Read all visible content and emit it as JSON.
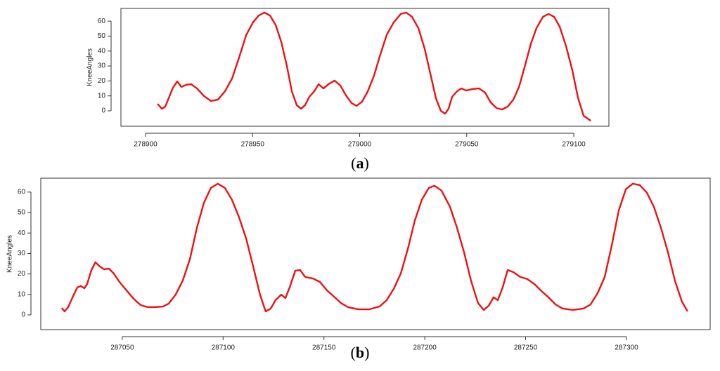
{
  "chart_data": [
    {
      "type": "line",
      "caption": "a",
      "ylabel": "KneeAngles",
      "color": "#ee1111",
      "xlim": [
        278888.5,
        279116.4
      ],
      "xticks": [
        278900,
        278950,
        279000,
        279050,
        279100
      ],
      "ylim": [
        -10.3,
        68.5
      ],
      "yticks": [
        0,
        10,
        20,
        30,
        40,
        50,
        60
      ],
      "x": [
        278905.6,
        278907.6,
        278909.2,
        278910.8,
        278912.8,
        278914.8,
        278916.7,
        278919,
        278921.3,
        278924,
        278927.3,
        278930.5,
        278933.8,
        278937.1,
        278940.4,
        278943.7,
        278947,
        278950.2,
        278952.9,
        278955.5,
        278958.1,
        278960.8,
        278963.4,
        278966,
        278968.3,
        278970.6,
        278972.6,
        278974.5,
        278976.5,
        278978.8,
        278980.8,
        278983.1,
        278985.4,
        278988.3,
        278991,
        278993.6,
        278996.2,
        278998.5,
        279001.1,
        279003.8,
        279006.7,
        279009.4,
        279012.6,
        279015.9,
        279019.2,
        279021.8,
        279024.4,
        279027.4,
        279030.4,
        279033,
        279035.6,
        279037.9,
        279039.9,
        279041.5,
        279043.2,
        279045.5,
        279047.5,
        279049.8,
        279052.7,
        279055.7,
        279058.6,
        279061.2,
        279063.9,
        279066.5,
        279069.1,
        279071.8,
        279074.4,
        279077,
        279080,
        279082.6,
        279085.6,
        279088.2,
        279090.8,
        279093.4,
        279096.4,
        279099.3,
        279102,
        279104.6,
        279107.9
      ],
      "values": [
        4.7,
        1.4,
        2.8,
        8.5,
        15.5,
        19.7,
        16,
        17.4,
        17.8,
        15,
        9.9,
        6.6,
        7.5,
        13.1,
        21.6,
        35.7,
        50.7,
        59.2,
        63.8,
        65.7,
        63.8,
        57.3,
        46,
        30,
        13.1,
        3.8,
        1.4,
        3.8,
        9.4,
        13.1,
        17.8,
        15,
        17.8,
        20.2,
        16.9,
        10.3,
        5.2,
        3.3,
        6.1,
        13.1,
        23.5,
        36.6,
        50.7,
        59.2,
        64.8,
        65.7,
        62.9,
        55.4,
        41.3,
        24.9,
        8.5,
        0,
        -1.9,
        1.4,
        9.4,
        13.1,
        15,
        13.6,
        14.6,
        15,
        12.2,
        5.6,
        1.9,
        0.9,
        2.8,
        7.5,
        16,
        29.1,
        45.1,
        55.4,
        62.9,
        64.8,
        62.9,
        56.3,
        43.2,
        27.2,
        8.5,
        -3.3,
        -6.6
      ]
    },
    {
      "type": "line",
      "caption": "b",
      "ylabel": "KneeAngles",
      "color": "#ee1111",
      "xlim": [
        287009.6,
        287341.5
      ],
      "xticks": [
        287050,
        287100,
        287150,
        287200,
        287250,
        287300
      ],
      "ylim": [
        -7.2,
        66.8
      ],
      "yticks": [
        0,
        10,
        20,
        30,
        40,
        50,
        60
      ],
      "x": [
        287020,
        287021.4,
        287023.2,
        287025.2,
        287027.7,
        287029.4,
        287031.2,
        287032.6,
        287034.7,
        287036.7,
        287038.8,
        287040.9,
        287043.4,
        287045.8,
        287048.6,
        287052.1,
        287055.6,
        287059.1,
        287062.6,
        287066,
        287070.2,
        287073,
        287076.5,
        287080,
        287083.5,
        287087,
        287090.4,
        287093.9,
        287097.4,
        287100.9,
        287104.4,
        287107.9,
        287111.4,
        287114.9,
        287118.3,
        287121.1,
        287123.6,
        287126,
        287128.8,
        287130.9,
        287133,
        287135.8,
        287138.2,
        287140.7,
        287144.5,
        287148,
        287151.5,
        287155,
        287158.4,
        287161.9,
        287167.2,
        287172.4,
        287177.6,
        287181.1,
        287184.6,
        287188.1,
        287191.6,
        287195,
        287198.5,
        287202,
        287204.8,
        287208.3,
        287212.5,
        287216,
        287219.5,
        287222.9,
        287226.4,
        287229.2,
        287231.7,
        287234.1,
        287236.2,
        287238.6,
        287241.1,
        287243.9,
        287247.4,
        287250.8,
        287254.3,
        287257.8,
        287261.3,
        287264.8,
        287268.3,
        287273.5,
        287278.7,
        287282.2,
        287285.7,
        287289.2,
        287292.7,
        287296.2,
        287299.7,
        287303.1,
        287306.6,
        287310.1,
        287313.6,
        287317.1,
        287320.6,
        287324,
        287327.5,
        287330.3
      ],
      "values": [
        3.4,
        1.7,
        3.8,
        8.2,
        13.4,
        14.1,
        13,
        15.1,
        21.9,
        25.7,
        23.7,
        22.3,
        22.6,
        20.2,
        16.1,
        12,
        7.9,
        4.8,
        3.8,
        3.8,
        4.1,
        5.5,
        9.9,
        16.8,
        27.1,
        42.5,
        54.5,
        62,
        64.1,
        62,
        56.2,
        47.7,
        37.4,
        23.7,
        9.9,
        1.7,
        3.1,
        7.2,
        9.9,
        8.2,
        13.4,
        21.6,
        21.9,
        18.5,
        17.8,
        16.1,
        12,
        8.9,
        5.8,
        3.8,
        2.7,
        2.7,
        4.1,
        7.2,
        12.7,
        20.2,
        32.2,
        45.9,
        56.2,
        62,
        63.1,
        60.7,
        52.8,
        42.5,
        30.5,
        16.8,
        5.8,
        2.4,
        4.5,
        8.6,
        7.2,
        13.4,
        21.9,
        20.9,
        18.5,
        17.5,
        15.1,
        11.7,
        8.6,
        5.1,
        3.1,
        2.4,
        3.1,
        5.1,
        10.6,
        18.5,
        33.9,
        51.1,
        61.4,
        64.1,
        63.4,
        59.7,
        52.8,
        42.5,
        30.5,
        16.8,
        6.5,
        1.7
      ]
    }
  ]
}
